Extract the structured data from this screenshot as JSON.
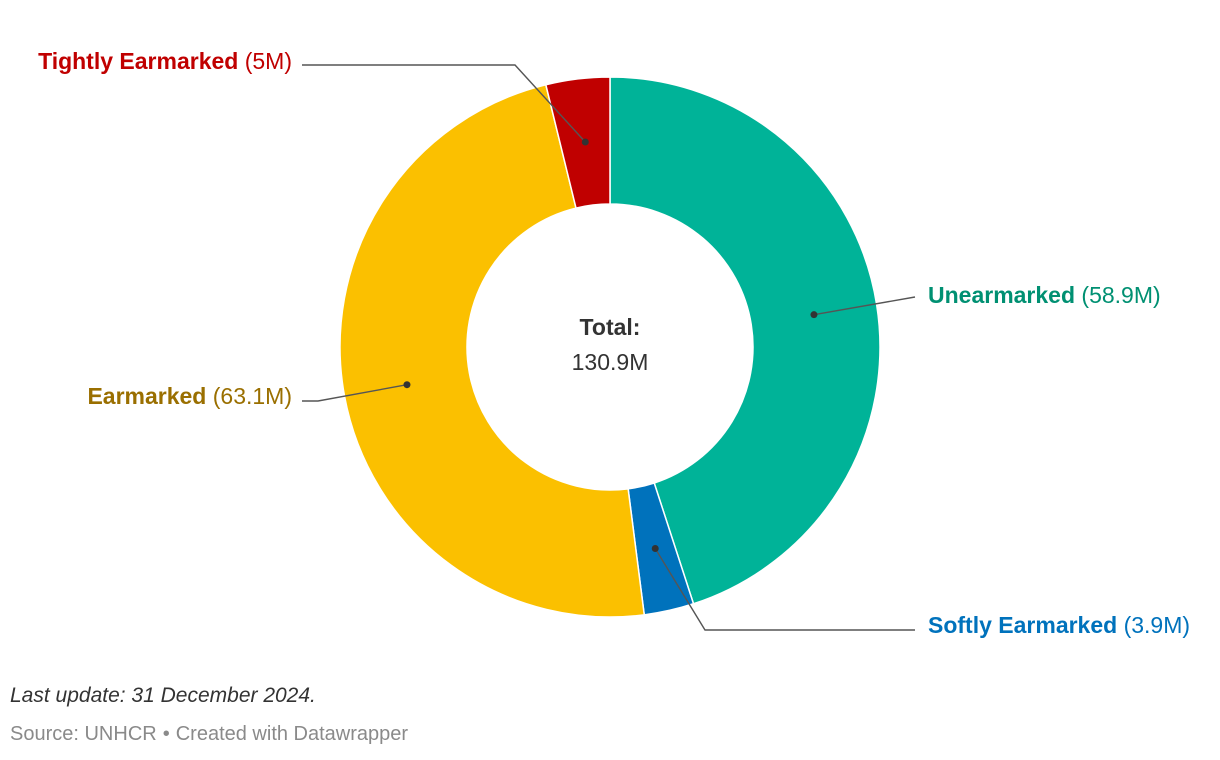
{
  "chart_data": {
    "type": "pie",
    "donut": true,
    "center_title": "Total:",
    "center_value": "130.9M",
    "slices": [
      {
        "name": "Unearmarked",
        "value": 58.9,
        "value_label": "(58.9M)",
        "color": "#00b398",
        "text_color": "#009072"
      },
      {
        "name": "Softly Earmarked",
        "value": 3.9,
        "value_label": "(3.9M)",
        "color": "#0072bc",
        "text_color": "#0072bc"
      },
      {
        "name": "Earmarked",
        "value": 63.1,
        "value_label": "(63.1M)",
        "color": "#fbc000",
        "text_color": "#9a6f00"
      },
      {
        "name": "Tightly Earmarked",
        "value": 5,
        "value_label": "(5M)",
        "color": "#c00000",
        "text_color": "#c00000"
      }
    ],
    "legend": "direct labels"
  },
  "footer": {
    "note": "Last update: 31 December 2024.",
    "source": "Source: UNHCR",
    "separator": "•",
    "credit": "Created with Datawrapper"
  }
}
